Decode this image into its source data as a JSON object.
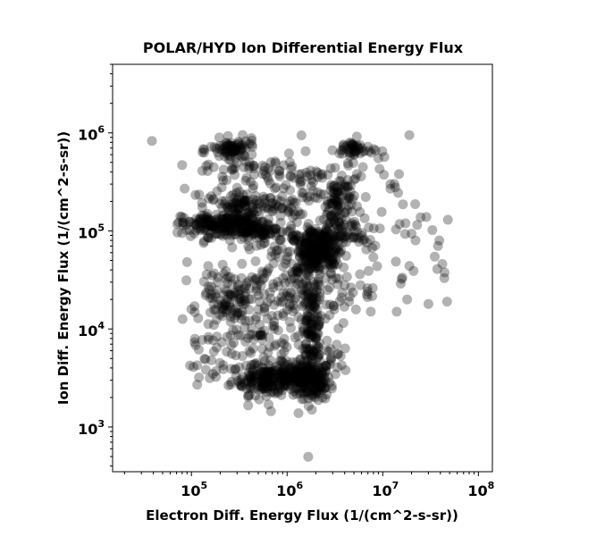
{
  "chart_data": {
    "type": "scatter",
    "title": "POLAR/HYD  Ion Differential Energy Flux",
    "xlabel": "Electron Diff. Energy Flux (1/(cm^2-s-sr))",
    "ylabel": "Ion Diff. Energy Flux (1/(cm^2-s-sr))",
    "xscale": "log",
    "yscale": "log",
    "xlim": [
      15000,
      140000000
    ],
    "ylim": [
      350,
      5000000
    ],
    "x_ticks": [
      {
        "value": 100000,
        "base": "10",
        "exp": "5"
      },
      {
        "value": 1000000,
        "base": "10",
        "exp": "6"
      },
      {
        "value": 10000000,
        "base": "10",
        "exp": "7"
      },
      {
        "value": 100000000,
        "base": "10",
        "exp": "8"
      }
    ],
    "y_ticks": [
      {
        "value": 1000,
        "base": "10",
        "exp": "3"
      },
      {
        "value": 10000,
        "base": "10",
        "exp": "4"
      },
      {
        "value": 100000,
        "base": "10",
        "exp": "5"
      },
      {
        "value": 1000000,
        "base": "10",
        "exp": "6"
      }
    ],
    "grid": false,
    "marker_color": "#000000",
    "marker_alpha": 0.3,
    "clusters": [
      {
        "cx": 1800000,
        "cy": 3000,
        "sx": 0.1,
        "sy": 0.1,
        "n": 140
      },
      {
        "cx": 600000,
        "cy": 3100,
        "sx": 0.18,
        "sy": 0.08,
        "n": 170
      },
      {
        "cx": 1050000,
        "cy": 3200,
        "sx": 0.12,
        "sy": 0.08,
        "n": 90
      },
      {
        "cx": 1800000,
        "cy": 8000,
        "sx": 0.06,
        "sy": 0.3,
        "n": 150
      },
      {
        "cx": 1800000,
        "cy": 60000,
        "sx": 0.12,
        "sy": 0.12,
        "n": 160
      },
      {
        "cx": 2400000,
        "cy": 70000,
        "sx": 0.1,
        "sy": 0.1,
        "n": 90
      },
      {
        "cx": 200000,
        "cy": 115000,
        "sx": 0.2,
        "sy": 0.06,
        "n": 170
      },
      {
        "cx": 500000,
        "cy": 100000,
        "sx": 0.2,
        "sy": 0.06,
        "n": 110
      },
      {
        "cx": 350000,
        "cy": 180000,
        "sx": 0.18,
        "sy": 0.06,
        "n": 90
      },
      {
        "cx": 3500000,
        "cy": 200000,
        "sx": 0.08,
        "sy": 0.15,
        "n": 80
      },
      {
        "cx": 270000,
        "cy": 680000,
        "sx": 0.12,
        "sy": 0.05,
        "n": 70
      },
      {
        "cx": 5000000,
        "cy": 680000,
        "sx": 0.1,
        "sy": 0.05,
        "n": 45
      },
      {
        "cx": 250000,
        "cy": 22000,
        "sx": 0.15,
        "sy": 0.12,
        "n": 90
      },
      {
        "cx": 420000,
        "cy": 8000,
        "sx": 0.25,
        "sy": 0.18,
        "n": 80
      },
      {
        "cx": 800000,
        "cy": 30000,
        "sx": 0.3,
        "sy": 0.25,
        "n": 110
      },
      {
        "cx": 2500000,
        "cy": 25000,
        "sx": 0.25,
        "sy": 0.2,
        "n": 60
      },
      {
        "cx": 3500000,
        "cy": 100000,
        "sx": 0.25,
        "sy": 0.1,
        "n": 70
      },
      {
        "cx": 400000,
        "cy": 400000,
        "sx": 0.3,
        "sy": 0.15,
        "n": 70
      },
      {
        "cx": 2000000,
        "cy": 400000,
        "sx": 0.3,
        "sy": 0.15,
        "n": 50
      },
      {
        "cx": 150000,
        "cy": 6000,
        "sx": 0.1,
        "sy": 0.18,
        "n": 22
      },
      {
        "cx": 3000000,
        "cy": 5000,
        "sx": 0.1,
        "sy": 0.2,
        "n": 20
      },
      {
        "cx": 1000000,
        "cy": 200000,
        "sx": 0.2,
        "sy": 0.1,
        "n": 40
      },
      {
        "cx": 12000000,
        "cy": 200000,
        "sx": 0.15,
        "sy": 0.15,
        "n": 14
      },
      {
        "cx": 25000000,
        "cy": 60000,
        "sx": 0.22,
        "sy": 0.22,
        "n": 10
      },
      {
        "cx": 10000000,
        "cy": 40000,
        "sx": 0.15,
        "sy": 0.25,
        "n": 10
      }
    ],
    "points": [
      [
        19000000,
        950000
      ],
      [
        33000000,
        102000
      ],
      [
        48000000,
        130000
      ],
      [
        39000000,
        80000
      ],
      [
        22000000,
        80000
      ],
      [
        30000000,
        18000
      ],
      [
        47000000,
        19000
      ],
      [
        18000000,
        20000
      ],
      [
        21000000,
        39000
      ],
      [
        44000000,
        33000
      ],
      [
        42000000,
        46000
      ],
      [
        19000000,
        44000
      ],
      [
        7500000,
        15000
      ],
      [
        14000000,
        15000
      ],
      [
        80000,
        470000
      ],
      [
        85000,
        270000
      ],
      [
        80000,
        95000
      ],
      [
        90000,
        48000
      ],
      [
        115000,
        2700
      ],
      [
        105000,
        4100
      ],
      [
        120000,
        3200
      ],
      [
        140000,
        4900
      ],
      [
        680000,
        1450
      ],
      [
        640000,
        1700
      ],
      [
        2500000,
        1950
      ],
      [
        2600000,
        2150
      ],
      [
        9000000,
        550000
      ],
      [
        12000000,
        300000
      ]
    ]
  }
}
